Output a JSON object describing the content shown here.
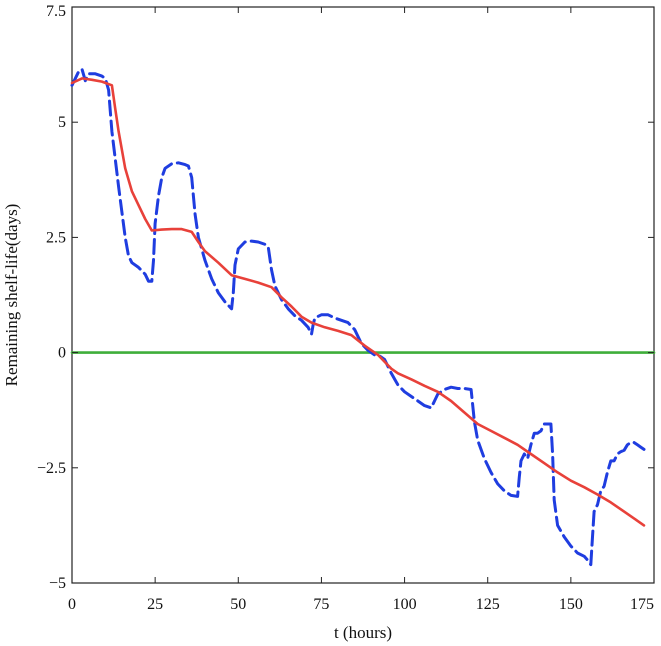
{
  "chart_data": {
    "type": "line",
    "title": "",
    "xlabel": "t (hours)",
    "ylabel": "Remaining shelf-life(days)",
    "xlim": [
      0,
      175
    ],
    "ylim": [
      -5,
      7.5
    ],
    "xticks": [
      0,
      25,
      50,
      75,
      100,
      125,
      150,
      175
    ],
    "xtick_labels": [
      "0",
      "25",
      "50",
      "75",
      "100",
      "125",
      "150",
      "175"
    ],
    "yticks": [
      -5,
      -2.5,
      0,
      2.5,
      5,
      7.5
    ],
    "ytick_labels": [
      "−5",
      "−2.5",
      "0",
      "2.5",
      "5",
      "7.5"
    ],
    "grid": false,
    "legend": "none",
    "series": [
      {
        "style": "dashed",
        "color": "#1f3de0",
        "points": [
          [
            0,
            5.8
          ],
          [
            2,
            6.1
          ],
          [
            3,
            6.15
          ],
          [
            4,
            5.9
          ],
          [
            5,
            6.05
          ],
          [
            7,
            6.05
          ],
          [
            9,
            6.0
          ],
          [
            10,
            5.95
          ],
          [
            11,
            5.7
          ],
          [
            12,
            4.8
          ],
          [
            14,
            3.6
          ],
          [
            16,
            2.5
          ],
          [
            17,
            2.1
          ],
          [
            18,
            1.95
          ],
          [
            20,
            1.85
          ],
          [
            22,
            1.7
          ],
          [
            23,
            1.55
          ],
          [
            24,
            1.55
          ],
          [
            24.5,
            2.0
          ],
          [
            25,
            2.8
          ],
          [
            26,
            3.4
          ],
          [
            27,
            3.8
          ],
          [
            28,
            4.0
          ],
          [
            30,
            4.1
          ],
          [
            32,
            4.12
          ],
          [
            34,
            4.08
          ],
          [
            35,
            4.05
          ],
          [
            36,
            3.8
          ],
          [
            37,
            3.0
          ],
          [
            38,
            2.5
          ],
          [
            40,
            2.0
          ],
          [
            42,
            1.6
          ],
          [
            44,
            1.3
          ],
          [
            46,
            1.1
          ],
          [
            48,
            0.95
          ],
          [
            48.5,
            1.3
          ],
          [
            49,
            1.9
          ],
          [
            50,
            2.25
          ],
          [
            52,
            2.4
          ],
          [
            54,
            2.42
          ],
          [
            56,
            2.4
          ],
          [
            58,
            2.35
          ],
          [
            59,
            2.3
          ],
          [
            60,
            1.8
          ],
          [
            61,
            1.45
          ],
          [
            63,
            1.15
          ],
          [
            65,
            0.95
          ],
          [
            67,
            0.8
          ],
          [
            69,
            0.7
          ],
          [
            71,
            0.55
          ],
          [
            72,
            0.4
          ],
          [
            72.5,
            0.6
          ],
          [
            73,
            0.75
          ],
          [
            75,
            0.82
          ],
          [
            77,
            0.82
          ],
          [
            79,
            0.75
          ],
          [
            81,
            0.7
          ],
          [
            83,
            0.65
          ],
          [
            85,
            0.5
          ],
          [
            87,
            0.2
          ],
          [
            89,
            0.05
          ],
          [
            91,
            -0.05
          ],
          [
            92,
            -0.05
          ],
          [
            94,
            -0.15
          ],
          [
            96,
            -0.45
          ],
          [
            98,
            -0.7
          ],
          [
            100,
            -0.85
          ],
          [
            102,
            -0.95
          ],
          [
            104,
            -1.05
          ],
          [
            106,
            -1.15
          ],
          [
            108,
            -1.2
          ],
          [
            109,
            -1.05
          ],
          [
            110,
            -0.9
          ],
          [
            112,
            -0.8
          ],
          [
            114,
            -0.75
          ],
          [
            116,
            -0.78
          ],
          [
            118,
            -0.78
          ],
          [
            120,
            -0.8
          ],
          [
            121,
            -1.5
          ],
          [
            122,
            -1.9
          ],
          [
            124,
            -2.3
          ],
          [
            126,
            -2.6
          ],
          [
            128,
            -2.85
          ],
          [
            130,
            -3.0
          ],
          [
            132,
            -3.1
          ],
          [
            134,
            -3.12
          ],
          [
            134.5,
            -2.7
          ],
          [
            135,
            -2.35
          ],
          [
            136,
            -2.2
          ],
          [
            137,
            -2.3
          ],
          [
            138,
            -2.0
          ],
          [
            139,
            -1.75
          ],
          [
            140,
            -1.75
          ],
          [
            141,
            -1.7
          ],
          [
            142,
            -1.55
          ],
          [
            143,
            -1.55
          ],
          [
            144,
            -1.55
          ],
          [
            144.5,
            -2.2
          ],
          [
            145,
            -3.2
          ],
          [
            146,
            -3.75
          ],
          [
            148,
            -4.0
          ],
          [
            150,
            -4.2
          ],
          [
            152,
            -4.35
          ],
          [
            154,
            -4.42
          ],
          [
            155,
            -4.5
          ],
          [
            156,
            -4.6
          ],
          [
            156.5,
            -4.0
          ],
          [
            157,
            -3.45
          ],
          [
            158,
            -3.3
          ],
          [
            159,
            -3.0
          ],
          [
            160,
            -2.9
          ],
          [
            161,
            -2.6
          ],
          [
            162,
            -2.35
          ],
          [
            163,
            -2.35
          ],
          [
            164,
            -2.2
          ],
          [
            165,
            -2.15
          ],
          [
            166,
            -2.12
          ],
          [
            167,
            -2.0
          ],
          [
            168,
            -1.95
          ],
          [
            169,
            -1.95
          ],
          [
            170,
            -2.0
          ],
          [
            171,
            -2.05
          ],
          [
            172,
            -2.1
          ]
        ]
      },
      {
        "style": "solid",
        "color": "#e8413a",
        "points": [
          [
            0,
            5.85
          ],
          [
            3,
            5.95
          ],
          [
            6,
            5.92
          ],
          [
            9,
            5.88
          ],
          [
            12,
            5.8
          ],
          [
            13,
            5.3
          ],
          [
            14,
            4.8
          ],
          [
            16,
            4.0
          ],
          [
            18,
            3.5
          ],
          [
            20,
            3.2
          ],
          [
            22,
            2.9
          ],
          [
            24,
            2.65
          ],
          [
            27,
            2.67
          ],
          [
            30,
            2.68
          ],
          [
            33,
            2.68
          ],
          [
            36,
            2.62
          ],
          [
            38,
            2.4
          ],
          [
            40,
            2.2
          ],
          [
            44,
            1.95
          ],
          [
            48,
            1.68
          ],
          [
            52,
            1.6
          ],
          [
            56,
            1.52
          ],
          [
            60,
            1.42
          ],
          [
            63,
            1.2
          ],
          [
            66,
            1.0
          ],
          [
            69,
            0.78
          ],
          [
            72,
            0.65
          ],
          [
            76,
            0.55
          ],
          [
            80,
            0.47
          ],
          [
            84,
            0.38
          ],
          [
            88,
            0.15
          ],
          [
            92,
            -0.05
          ],
          [
            96,
            -0.35
          ],
          [
            98,
            -0.45
          ],
          [
            102,
            -0.58
          ],
          [
            106,
            -0.72
          ],
          [
            110,
            -0.85
          ],
          [
            114,
            -1.05
          ],
          [
            118,
            -1.3
          ],
          [
            122,
            -1.55
          ],
          [
            126,
            -1.7
          ],
          [
            130,
            -1.85
          ],
          [
            134,
            -2.0
          ],
          [
            138,
            -2.2
          ],
          [
            142,
            -2.4
          ],
          [
            146,
            -2.6
          ],
          [
            150,
            -2.78
          ],
          [
            154,
            -2.92
          ],
          [
            158,
            -3.08
          ],
          [
            162,
            -3.25
          ],
          [
            166,
            -3.45
          ],
          [
            170,
            -3.65
          ],
          [
            172,
            -3.75
          ]
        ]
      },
      {
        "style": "solid",
        "color": "#3fae3a",
        "points": [
          [
            0,
            0
          ],
          [
            175,
            0
          ]
        ]
      }
    ]
  }
}
